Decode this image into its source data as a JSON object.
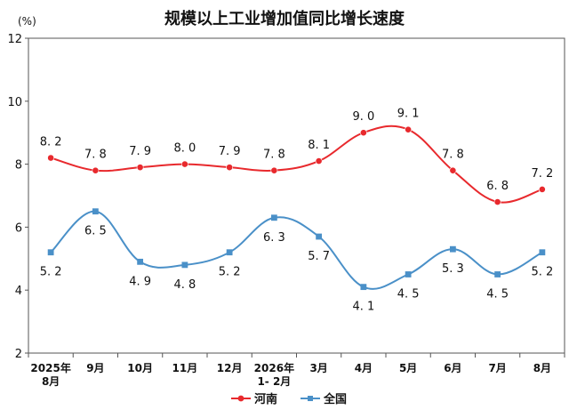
{
  "chart_data": {
    "type": "line",
    "title": "规模以上工业增加值同比增长速度",
    "unit_label": "(%)",
    "categories": [
      "2025年\n8月",
      "9月",
      "10月",
      "11月",
      "12月",
      "2026年\n1- 2月",
      "3月",
      "4月",
      "5月",
      "6月",
      "7月",
      "8月"
    ],
    "ylim": [
      2,
      12
    ],
    "yticks": [
      2,
      4,
      6,
      8,
      10,
      12
    ],
    "grid": false,
    "legend": "bottom",
    "series": [
      {
        "name": "河南",
        "color": "#e8292d",
        "marker": "circle",
        "values": [
          8.2,
          7.8,
          7.9,
          8.0,
          7.9,
          7.8,
          8.1,
          9.0,
          9.1,
          7.8,
          6.8,
          7.2
        ],
        "labels": [
          "8. 2",
          "7. 8",
          "7. 9",
          "8. 0",
          "7. 9",
          "7. 8",
          "8. 1",
          "9. 0",
          "9. 1",
          "7. 8",
          "6. 8",
          "7. 2"
        ]
      },
      {
        "name": "全国",
        "color": "#4a90c8",
        "marker": "square",
        "values": [
          5.2,
          6.5,
          4.9,
          4.8,
          5.2,
          6.3,
          5.7,
          4.1,
          4.5,
          5.3,
          4.5,
          5.2
        ],
        "labels": [
          "5. 2",
          "6. 5",
          "4. 9",
          "4. 8",
          "5. 2",
          "6. 3",
          "5. 7",
          "4. 1",
          "4. 5",
          "5. 3",
          "4. 5",
          "5. 2"
        ]
      }
    ]
  }
}
